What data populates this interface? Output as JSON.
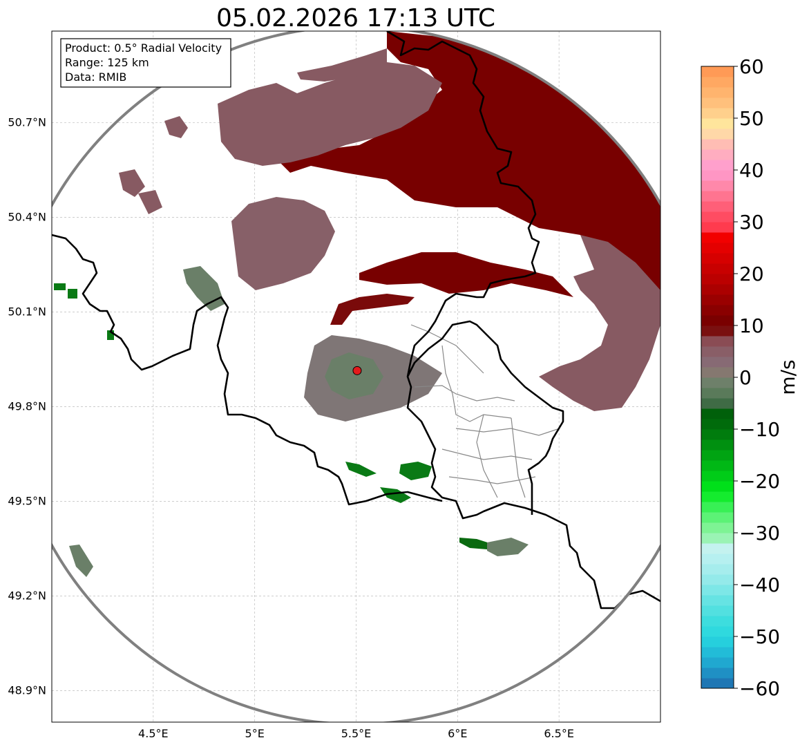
{
  "title": "05.02.2026 17:13 UTC",
  "info_box": {
    "line1": "Product: 0.5° Radial Velocity",
    "line2": "Range: 125 km",
    "line3": "Data: RMIB"
  },
  "map": {
    "lon_range": [
      4.0,
      7.0
    ],
    "lat_range": [
      48.8,
      50.99
    ],
    "lon_ticks": [
      {
        "value": 4.5,
        "label": "4.5°E"
      },
      {
        "value": 5.0,
        "label": "5°E"
      },
      {
        "value": 5.5,
        "label": "5.5°E"
      },
      {
        "value": 6.0,
        "label": "6°E"
      },
      {
        "value": 6.5,
        "label": "6.5°E"
      }
    ],
    "lat_ticks": [
      {
        "value": 50.7,
        "label": "50.7°N"
      },
      {
        "value": 50.4,
        "label": "50.4°N"
      },
      {
        "value": 50.1,
        "label": "50.1°N"
      },
      {
        "value": 49.8,
        "label": "49.8°N"
      },
      {
        "value": 49.5,
        "label": "49.5°N"
      },
      {
        "value": 49.2,
        "label": "49.2°N"
      },
      {
        "value": 48.9,
        "label": "48.9°N"
      }
    ],
    "grid": true,
    "radar_site": {
      "lon": 5.505,
      "lat": 49.914,
      "color": "#e41a1c"
    },
    "range_ring_color": "#808080",
    "border_color": "#000000",
    "subregion_color": "#888888"
  },
  "colorbar": {
    "label": "m/s",
    "min": -60,
    "max": 60,
    "ticks": [
      {
        "value": 60,
        "label": "60"
      },
      {
        "value": 50,
        "label": "50"
      },
      {
        "value": 40,
        "label": "40"
      },
      {
        "value": 30,
        "label": "30"
      },
      {
        "value": 20,
        "label": "20"
      },
      {
        "value": 10,
        "label": "10"
      },
      {
        "value": 0,
        "label": "0"
      },
      {
        "value": -10,
        "label": "−10"
      },
      {
        "value": -20,
        "label": "−20"
      },
      {
        "value": -30,
        "label": "−30"
      },
      {
        "value": -40,
        "label": "−40"
      },
      {
        "value": -50,
        "label": "−50"
      },
      {
        "value": -60,
        "label": "−60"
      }
    ],
    "bands": [
      {
        "from": -60,
        "to": -58,
        "color": "#1f77b4"
      },
      {
        "from": -58,
        "to": -56,
        "color": "#1f90c4"
      },
      {
        "from": -56,
        "to": -54,
        "color": "#20a8d0"
      },
      {
        "from": -54,
        "to": -52,
        "color": "#22bcd8"
      },
      {
        "from": -52,
        "to": -50,
        "color": "#26cfdd"
      },
      {
        "from": -50,
        "to": -48,
        "color": "#2fd9de"
      },
      {
        "from": -48,
        "to": -46,
        "color": "#3dddde"
      },
      {
        "from": -46,
        "to": -44,
        "color": "#52e0e0"
      },
      {
        "from": -44,
        "to": -42,
        "color": "#66e3e3"
      },
      {
        "from": -42,
        "to": -40,
        "color": "#7de7e7"
      },
      {
        "from": -40,
        "to": -38,
        "color": "#94eaea"
      },
      {
        "from": -38,
        "to": -36,
        "color": "#a6eded"
      },
      {
        "from": -36,
        "to": -34,
        "color": "#b6f0f0"
      },
      {
        "from": -34,
        "to": -32,
        "color": "#c4f2ef"
      },
      {
        "from": -32,
        "to": -30,
        "color": "#9af3b4"
      },
      {
        "from": -30,
        "to": -28,
        "color": "#7ef394"
      },
      {
        "from": -28,
        "to": -26,
        "color": "#5cf276"
      },
      {
        "from": -26,
        "to": -24,
        "color": "#38f055"
      },
      {
        "from": -24,
        "to": -22,
        "color": "#14ec2e"
      },
      {
        "from": -22,
        "to": -20,
        "color": "#00e01a"
      },
      {
        "from": -20,
        "to": -18,
        "color": "#00cc18"
      },
      {
        "from": -18,
        "to": -16,
        "color": "#00b815"
      },
      {
        "from": -16,
        "to": -14,
        "color": "#00a412"
      },
      {
        "from": -14,
        "to": -12,
        "color": "#009010"
      },
      {
        "from": -12,
        "to": -10,
        "color": "#007c0d"
      },
      {
        "from": -10,
        "to": -8,
        "color": "#006b0b"
      },
      {
        "from": -8,
        "to": -6,
        "color": "#00600a"
      },
      {
        "from": -6,
        "to": -4,
        "color": "#3f6b45"
      },
      {
        "from": -4,
        "to": -2,
        "color": "#5a7a5a"
      },
      {
        "from": -2,
        "to": 0,
        "color": "#6e806a"
      },
      {
        "from": 0,
        "to": 2,
        "color": "#857870"
      },
      {
        "from": 2,
        "to": 4,
        "color": "#876a74"
      },
      {
        "from": 4,
        "to": 6,
        "color": "#895e67"
      },
      {
        "from": 6,
        "to": 8,
        "color": "#8a4c54"
      },
      {
        "from": 8,
        "to": 10,
        "color": "#7a1010"
      },
      {
        "from": 10,
        "to": 12,
        "color": "#7a0000"
      },
      {
        "from": 12,
        "to": 14,
        "color": "#8a0000"
      },
      {
        "from": 14,
        "to": 16,
        "color": "#9a0000"
      },
      {
        "from": 16,
        "to": 18,
        "color": "#ab0000"
      },
      {
        "from": 18,
        "to": 20,
        "color": "#bb0000"
      },
      {
        "from": 20,
        "to": 22,
        "color": "#c80000"
      },
      {
        "from": 22,
        "to": 24,
        "color": "#d60000"
      },
      {
        "from": 24,
        "to": 26,
        "color": "#e40000"
      },
      {
        "from": 26,
        "to": 28,
        "color": "#f20000"
      },
      {
        "from": 28,
        "to": 30,
        "color": "#ff3b4e"
      },
      {
        "from": 30,
        "to": 32,
        "color": "#ff4c62"
      },
      {
        "from": 32,
        "to": 34,
        "color": "#ff5f78"
      },
      {
        "from": 34,
        "to": 36,
        "color": "#ff7490"
      },
      {
        "from": 36,
        "to": 38,
        "color": "#ff88aa"
      },
      {
        "from": 38,
        "to": 40,
        "color": "#ff96c4"
      },
      {
        "from": 40,
        "to": 42,
        "color": "#ffa0cc"
      },
      {
        "from": 42,
        "to": 44,
        "color": "#ffadc0"
      },
      {
        "from": 44,
        "to": 46,
        "color": "#ffbdb4"
      },
      {
        "from": 46,
        "to": 48,
        "color": "#ffd8a8"
      },
      {
        "from": 48,
        "to": 50,
        "color": "#ffe59c"
      },
      {
        "from": 50,
        "to": 52,
        "color": "#ffd08c"
      },
      {
        "from": 52,
        "to": 54,
        "color": "#ffc07c"
      },
      {
        "from": 54,
        "to": 56,
        "color": "#ffb46e"
      },
      {
        "from": 56,
        "to": 58,
        "color": "#ffa862"
      },
      {
        "from": 58,
        "to": 60,
        "color": "#ff9a56"
      }
    ]
  }
}
